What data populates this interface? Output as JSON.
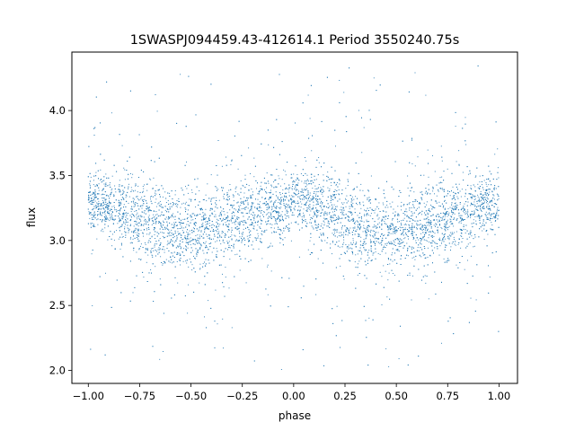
{
  "chart_data": {
    "type": "scatter",
    "title": "1SWASPJ094459.43-412614.1 Period 3550240.75s",
    "xlabel": "phase",
    "ylabel": "flux",
    "xlim": [
      -1.08,
      1.09
    ],
    "ylim": [
      1.9,
      4.45
    ],
    "xticks": [
      -1.0,
      -0.75,
      -0.5,
      -0.25,
      0.0,
      0.25,
      0.5,
      0.75,
      1.0
    ],
    "xtick_labels": [
      "−1.00",
      "−0.75",
      "−0.50",
      "−0.25",
      "0.00",
      "0.25",
      "0.50",
      "0.75",
      "1.00"
    ],
    "yticks": [
      2.0,
      2.5,
      3.0,
      3.5,
      4.0
    ],
    "ytick_labels": [
      "2.0",
      "2.5",
      "3.0",
      "3.5",
      "4.0"
    ],
    "grid": false,
    "legend": "none",
    "series": [
      {
        "color": "#1f77b4",
        "marker": "dot",
        "phase_flux_profile": {
          "phase": [
            0.0,
            0.05,
            0.1,
            0.15,
            0.2,
            0.25,
            0.3,
            0.35,
            0.4,
            0.45,
            0.5,
            0.55,
            0.6,
            0.65,
            0.7,
            0.75,
            0.8,
            0.85,
            0.9,
            0.95,
            1.0
          ],
          "mean_flux": [
            3.28,
            3.29,
            3.27,
            3.24,
            3.2,
            3.17,
            3.14,
            3.11,
            3.08,
            3.06,
            3.06,
            3.07,
            3.1,
            3.13,
            3.15,
            3.17,
            3.19,
            3.22,
            3.25,
            3.27,
            3.28
          ],
          "core_spread": [
            0.1,
            0.11,
            0.12,
            0.13,
            0.14,
            0.15,
            0.15,
            0.15,
            0.15,
            0.14,
            0.14,
            0.14,
            0.15,
            0.15,
            0.14,
            0.14,
            0.14,
            0.13,
            0.12,
            0.11,
            0.1
          ]
        },
        "outlier_range": [
          2.0,
          4.35
        ],
        "phase_range": [
          -1.0,
          1.0
        ]
      }
    ]
  }
}
